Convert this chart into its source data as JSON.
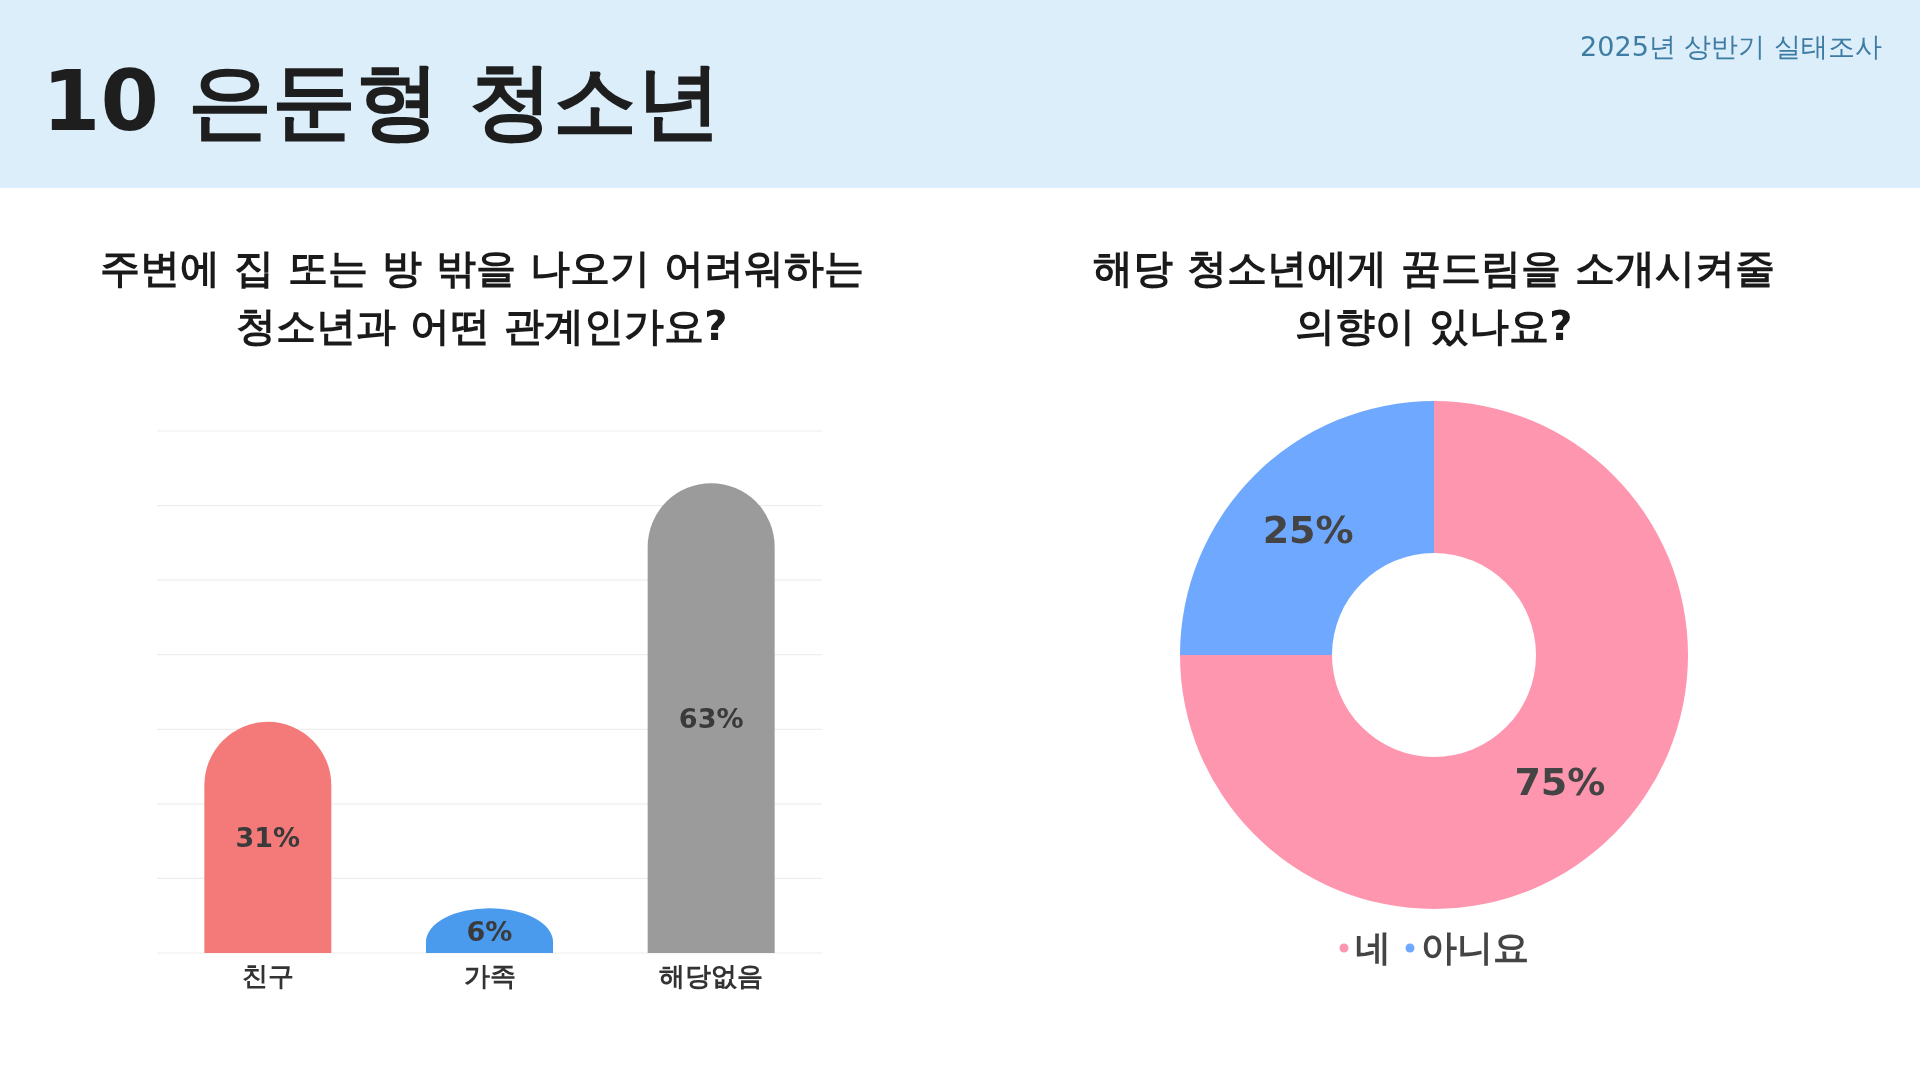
{
  "chart_data": [
    {
      "type": "other",
      "title": "10 은둔형 청소년",
      "subtitle": "2025년 상반기 실태조사"
    },
    {
      "type": "bar",
      "title": "주변에 집 또는 방 밖을 나오기 어려워하는 청소년과 어떤 관계인가요?",
      "categories": [
        "친구",
        "가족",
        "해당없음"
      ],
      "values": [
        31,
        6,
        63
      ],
      "colors": [
        "#f47a7a",
        "#4a9aee",
        "#9b9b9b"
      ],
      "value_labels": [
        "31%",
        "6%",
        "63%"
      ],
      "ylim": [
        0,
        70
      ],
      "yticks": [
        {
          "value": 0,
          "label": null
        },
        {
          "value": 10,
          "label": null
        },
        {
          "value": 20,
          "label": null
        },
        {
          "value": 30,
          "label": null
        },
        {
          "value": 40,
          "label": null
        },
        {
          "value": 50,
          "label": null
        },
        {
          "value": 60,
          "label": null
        },
        {
          "value": 70,
          "label": null
        }
      ],
      "grid": "y",
      "tick_labels": "x"
    },
    {
      "type": "donut",
      "title": "해당 청소년에게 꿈드림을 소개시켜줄 의향이 있나요?",
      "categories": [
        "네",
        "아니요"
      ],
      "values": [
        75,
        25
      ],
      "colors": [
        "#ff96b0",
        "#6ea8ff"
      ],
      "value_labels": [
        "75%",
        "25%"
      ],
      "legend": "bottom"
    }
  ]
}
